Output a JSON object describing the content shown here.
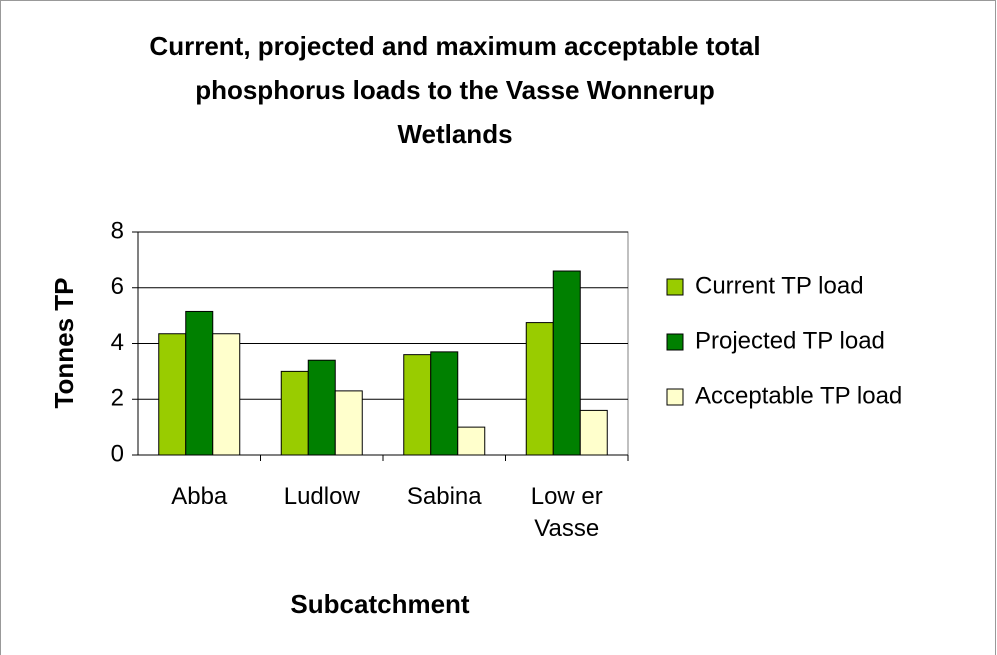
{
  "chart_data": {
    "type": "bar",
    "title": [
      "Current, projected and maximum acceptable total",
      "phosphorus loads to the Vasse Wonnerup",
      "Wetlands"
    ],
    "categories": [
      "Abba",
      "Ludlow",
      "Sabina",
      "Low er Vasse"
    ],
    "series": [
      {
        "name": "Current TP load",
        "color": "#99cc00",
        "values": [
          4.35,
          3.0,
          3.6,
          4.75
        ]
      },
      {
        "name": "Projected TP load",
        "color": "#008000",
        "values": [
          5.15,
          3.4,
          3.7,
          6.6
        ]
      },
      {
        "name": "Acceptable TP load",
        "color": "#ffffcc",
        "values": [
          4.35,
          2.3,
          1.0,
          1.6
        ]
      }
    ],
    "x_label": "Subcatchment",
    "y_label": "Tonnes TP",
    "ylim": [
      0,
      8
    ],
    "yticks": [
      0,
      2,
      4,
      6,
      8
    ],
    "grid": true,
    "legend": "right"
  }
}
